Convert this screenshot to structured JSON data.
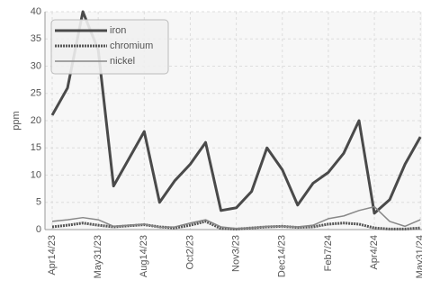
{
  "chart_data": {
    "type": "line",
    "y_label": "ppm",
    "categories": [
      "Apr14/23",
      null,
      null,
      "May31/23",
      null,
      null,
      "Aug14/23",
      null,
      null,
      "Oct2/23",
      null,
      null,
      "Nov3/23",
      null,
      null,
      "Dec14/23",
      null,
      null,
      "Feb7/24",
      null,
      null,
      "Apr4/24",
      null,
      null,
      "May31/24"
    ],
    "series": [
      {
        "name": "iron",
        "color": "#4a4a4a",
        "values": [
          21,
          26,
          40,
          33,
          8,
          13,
          18,
          5,
          9,
          12,
          16,
          3.5,
          4,
          7,
          15,
          11,
          4.5,
          8.5,
          10.5,
          14,
          20,
          3,
          5.5,
          12,
          17
        ]
      },
      {
        "name": "chromium",
        "color": "#555555",
        "values": [
          0.5,
          0.8,
          1.2,
          0.8,
          0.5,
          0.7,
          0.9,
          0.5,
          0.3,
          0.8,
          1.5,
          0.2,
          0.1,
          0.3,
          0.5,
          0.6,
          0.4,
          0.5,
          1,
          1.2,
          1,
          0.3,
          0.1,
          0.1,
          0.3
        ]
      },
      {
        "name": "nickel",
        "color": "#888888",
        "values": [
          1.5,
          1.8,
          2.2,
          1.8,
          0.6,
          0.8,
          1,
          0.4,
          0.5,
          1.2,
          1.8,
          0.5,
          0.2,
          0.3,
          0.6,
          0.6,
          0.5,
          0.8,
          2,
          2.5,
          3.5,
          4.2,
          1.5,
          0.6,
          1.8
        ]
      }
    ],
    "ylim": [
      0,
      40
    ],
    "yticks": [
      0,
      5,
      10,
      15,
      20,
      25,
      30,
      35,
      40
    ],
    "grid": true,
    "legend": "top-left"
  }
}
